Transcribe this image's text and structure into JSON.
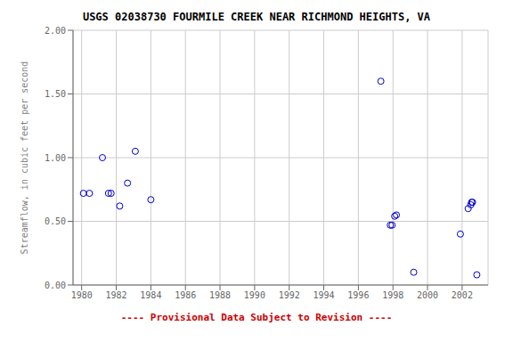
{
  "chart_data": {
    "type": "scatter",
    "title": "USGS 02038730 FOURMILE CREEK NEAR RICHMOND HEIGHTS, VA",
    "y_label": "Streamflow, in cubic feet per second",
    "x": [
      1980.1,
      1980.45,
      1981.2,
      1981.55,
      1981.7,
      1982.2,
      1982.65,
      1983.1,
      1984.0,
      1997.3,
      1997.85,
      1997.95,
      1998.1,
      1998.2,
      1999.2,
      2001.9,
      2002.35,
      2002.5,
      2002.55,
      2002.6,
      2002.85
    ],
    "values": [
      0.72,
      0.72,
      1.0,
      0.72,
      0.72,
      0.62,
      0.8,
      1.05,
      0.67,
      1.6,
      0.47,
      0.47,
      0.54,
      0.55,
      0.1,
      0.4,
      0.6,
      0.63,
      0.65,
      0.65,
      0.08
    ],
    "color": "#0000cc",
    "marker": "open_circle",
    "xlim": [
      1979.5,
      2003.5
    ],
    "ylim": [
      0.0,
      2.0
    ],
    "xticks": [
      1980,
      1982,
      1984,
      1986,
      1988,
      1990,
      1992,
      1994,
      1996,
      1998,
      2000,
      2002
    ],
    "yticks": [
      {
        "value": 0,
        "label": "0.00"
      },
      {
        "value": 0.5,
        "label": "0.50"
      },
      {
        "value": 1,
        "label": "1.00"
      },
      {
        "value": 1.5,
        "label": "1.50"
      },
      {
        "value": 2,
        "label": "2.00"
      }
    ],
    "grid": true,
    "annotations": [
      {
        "text": "---- Provisional Data Subject to Revision ----",
        "color": "#cc0000"
      }
    ]
  }
}
